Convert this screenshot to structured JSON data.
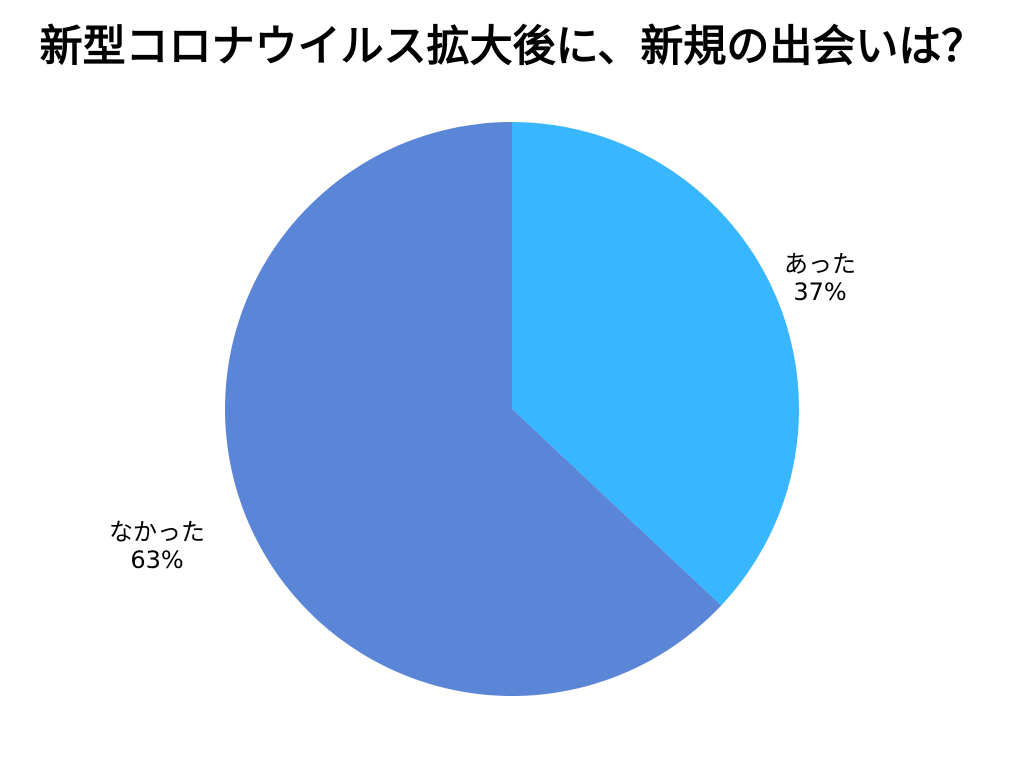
{
  "title": "新型コロナウイルス拡大後に、新規の出会いは？",
  "chart_data": {
    "type": "pie",
    "title": "新型コロナウイルス拡大後に、新規の出会いは？",
    "start_angle_deg": 0,
    "direction": "clockwise",
    "legend": "none",
    "background_color": "#ffffff",
    "title_color": "#000000",
    "label_color": "#000000",
    "slices": [
      {
        "label": "あった",
        "value": 37,
        "percent_label": "37%",
        "color": "#38B6FF",
        "label_position": "outside-right"
      },
      {
        "label": "なかった",
        "value": 63,
        "percent_label": "63%",
        "color": "#5B85D6",
        "label_position": "outside-left"
      }
    ]
  }
}
